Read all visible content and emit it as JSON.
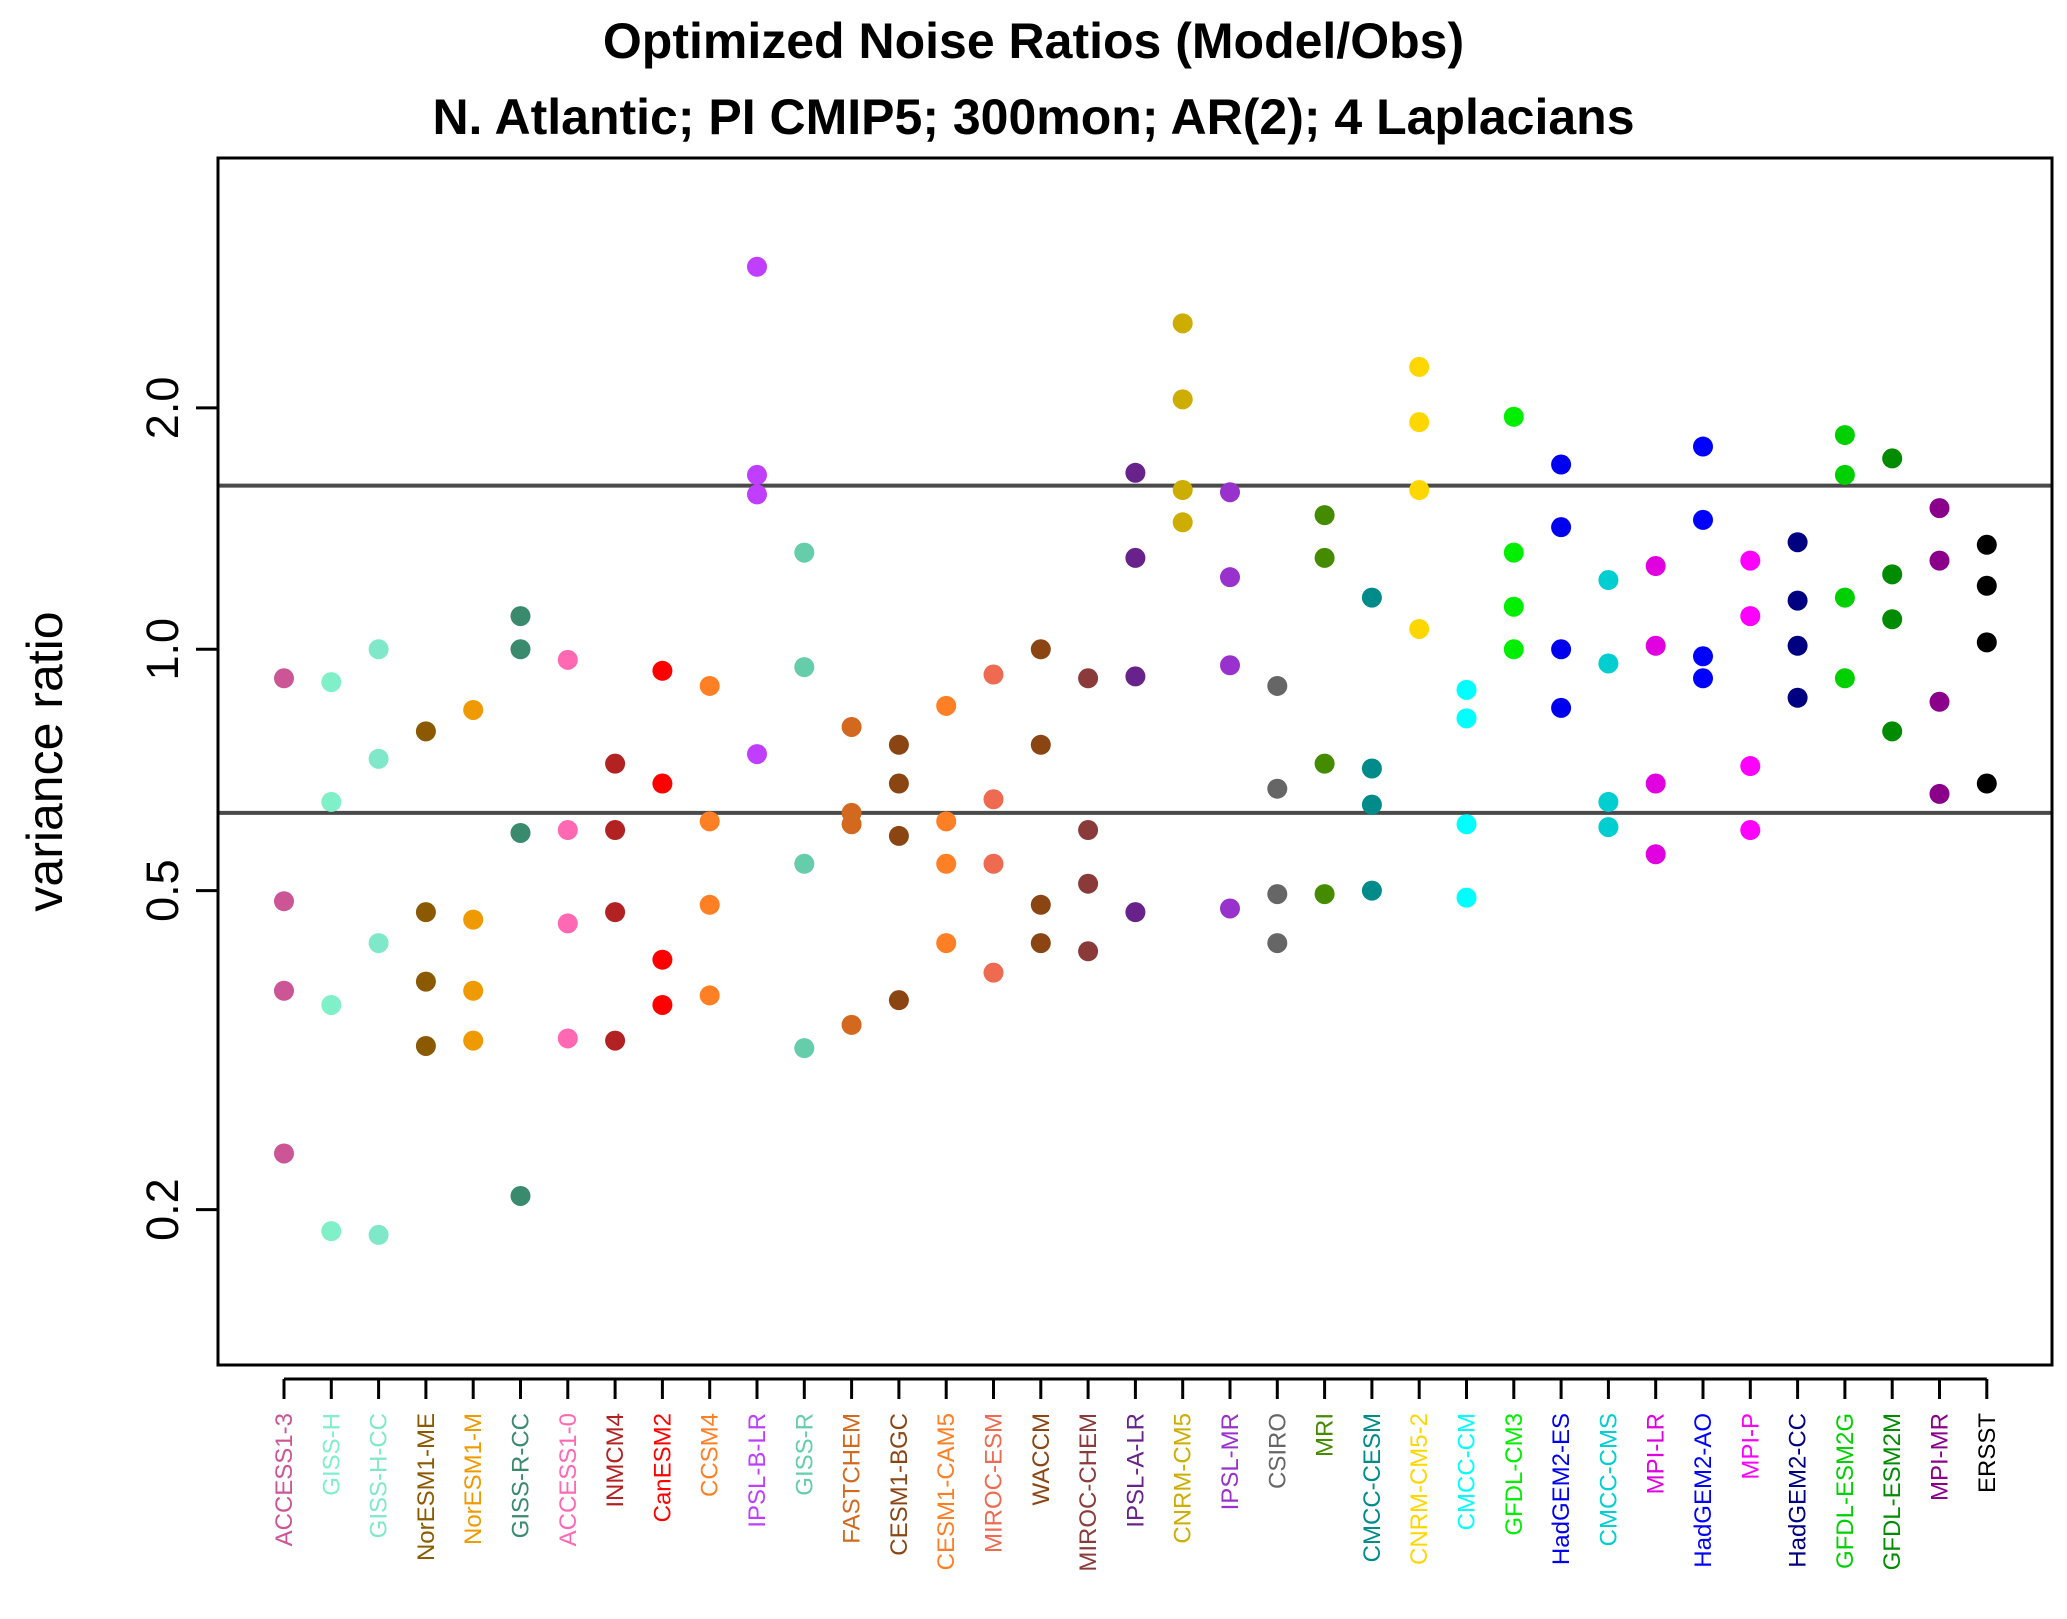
{
  "chart_data": {
    "type": "scatter",
    "title": "Optimized Noise Ratios (Model/Obs)",
    "subtitle": "N. Atlantic; PI CMIP5; 300mon; AR(2); 4 Laplacians",
    "ylabel": "variance ratio",
    "xlabel": "",
    "yscale": "log",
    "ylim": [
      0.128,
      4.1
    ],
    "yticks": [
      "0.2",
      "0.5",
      "1.0",
      "2.0"
    ],
    "ytick_values": [
      0.2,
      0.5,
      1.0,
      2.0
    ],
    "reference_lines": [
      0.625,
      1.6
    ],
    "grid": false,
    "legend": "none",
    "categories": [
      {
        "name": "ACCESS1-3",
        "color": "#CC5595",
        "values": [
          0.92,
          0.485,
          0.375,
          0.235
        ]
      },
      {
        "name": "GISS-H",
        "color": "#7FF0C8",
        "values": [
          0.91,
          0.645,
          0.36,
          0.188
        ]
      },
      {
        "name": "GISS-H-CC",
        "color": "#7FE8C8",
        "values": [
          1.0,
          0.73,
          0.43,
          0.186
        ]
      },
      {
        "name": "NorESM1-ME",
        "color": "#8B5A00",
        "values": [
          0.79,
          0.47,
          0.385,
          0.32
        ]
      },
      {
        "name": "NorESM1-M",
        "color": "#EE9A00",
        "values": [
          0.84,
          0.46,
          0.375,
          0.325
        ]
      },
      {
        "name": "GISS-R-CC",
        "color": "#3A8A6E",
        "values": [
          1.1,
          1.0,
          0.59,
          0.208
        ]
      },
      {
        "name": "ACCESS1-0",
        "color": "#FF69B4",
        "values": [
          0.97,
          0.595,
          0.455,
          0.327
        ]
      },
      {
        "name": "INMCM4",
        "color": "#B22222",
        "values": [
          0.72,
          0.595,
          0.47,
          0.325
        ]
      },
      {
        "name": "CanESM2",
        "color": "#FF0000",
        "values": [
          0.94,
          0.68,
          0.41,
          0.36
        ]
      },
      {
        "name": "CCSM4",
        "color": "#FF7F24",
        "values": [
          0.9,
          0.61,
          0.48,
          0.37
        ]
      },
      {
        "name": "IPSL-B-LR",
        "color": "#BF3EFF",
        "values": [
          3.0,
          1.65,
          1.56,
          0.74
        ]
      },
      {
        "name": "GISS-R",
        "color": "#66CDAA",
        "values": [
          1.32,
          0.95,
          0.54,
          0.318
        ]
      },
      {
        "name": "FASTCHEM",
        "color": "#D2691E",
        "values": [
          0.8,
          0.625,
          0.605,
          0.34
        ]
      },
      {
        "name": "CESM1-BGC",
        "color": "#8B4513",
        "values": [
          0.76,
          0.68,
          0.585,
          0.365
        ]
      },
      {
        "name": "CESM1-CAM5",
        "color": "#FF7F24",
        "values": [
          0.85,
          0.61,
          0.54,
          0.43
        ]
      },
      {
        "name": "MIROC-ESM",
        "color": "#EE6A50",
        "values": [
          0.93,
          0.65,
          0.54,
          0.395
        ]
      },
      {
        "name": "WACCM",
        "color": "#8B4513",
        "values": [
          1.0,
          0.76,
          0.48,
          0.43
        ]
      },
      {
        "name": "MIROC-CHEM",
        "color": "#8B3A3A",
        "values": [
          0.92,
          0.595,
          0.51,
          0.42
        ]
      },
      {
        "name": "IPSL-A-LR",
        "color": "#68228B",
        "values": [
          1.66,
          1.3,
          0.925,
          0.47
        ]
      },
      {
        "name": "CNRM-CM5",
        "color": "#CDAD00",
        "values": [
          2.55,
          2.05,
          1.58,
          1.44
        ]
      },
      {
        "name": "IPSL-MR",
        "color": "#9932CC",
        "values": [
          1.57,
          1.23,
          0.955,
          0.475
        ]
      },
      {
        "name": "CSIRO",
        "color": "#666666",
        "values": [
          0.9,
          0.67,
          0.495,
          0.43
        ]
      },
      {
        "name": "MRI",
        "color": "#458B00",
        "values": [
          1.47,
          1.3,
          0.72,
          0.495
        ]
      },
      {
        "name": "CMCC-CESM",
        "color": "#008B8B",
        "values": [
          1.16,
          0.71,
          0.64,
          0.5
        ]
      },
      {
        "name": "CNRM-CM5-2",
        "color": "#FFD700",
        "values": [
          2.25,
          1.92,
          1.58,
          1.06
        ]
      },
      {
        "name": "CMCC-CM",
        "color": "#00FFFF",
        "values": [
          0.89,
          0.82,
          0.605,
          0.49
        ]
      },
      {
        "name": "GFDL-CM3",
        "color": "#00EE00",
        "values": [
          1.95,
          1.32,
          1.13,
          1.0
        ]
      },
      {
        "name": "HadGEM2-ES",
        "color": "#0000EE",
        "values": [
          1.7,
          1.42,
          1.0,
          0.845
        ]
      },
      {
        "name": "CMCC-CMS",
        "color": "#00CED1",
        "values": [
          1.22,
          0.96,
          0.645,
          0.6
        ]
      },
      {
        "name": "MPI-LR",
        "color": "#E000E0",
        "values": [
          1.27,
          1.01,
          0.68,
          0.555
        ]
      },
      {
        "name": "HadGEM2-AO",
        "color": "#0000FF",
        "values": [
          1.79,
          1.45,
          0.98,
          0.92
        ]
      },
      {
        "name": "MPI-P",
        "color": "#FF00FF",
        "values": [
          1.29,
          1.1,
          0.715,
          0.595
        ]
      },
      {
        "name": "HadGEM2-CC",
        "color": "#000080",
        "values": [
          1.36,
          1.15,
          1.01,
          0.87
        ]
      },
      {
        "name": "GFDL-ESM2G",
        "color": "#00D000",
        "values": [
          1.85,
          1.65,
          1.16,
          0.92
        ]
      },
      {
        "name": "GFDL-ESM2M",
        "color": "#008B00",
        "values": [
          1.73,
          1.24,
          1.09,
          0.79
        ]
      },
      {
        "name": "MPI-MR",
        "color": "#8B008B",
        "values": [
          1.5,
          1.29,
          0.86,
          0.66
        ]
      },
      {
        "name": "ERSST",
        "color": "#000000",
        "values": [
          1.35,
          1.2,
          1.02,
          0.68
        ]
      }
    ]
  }
}
